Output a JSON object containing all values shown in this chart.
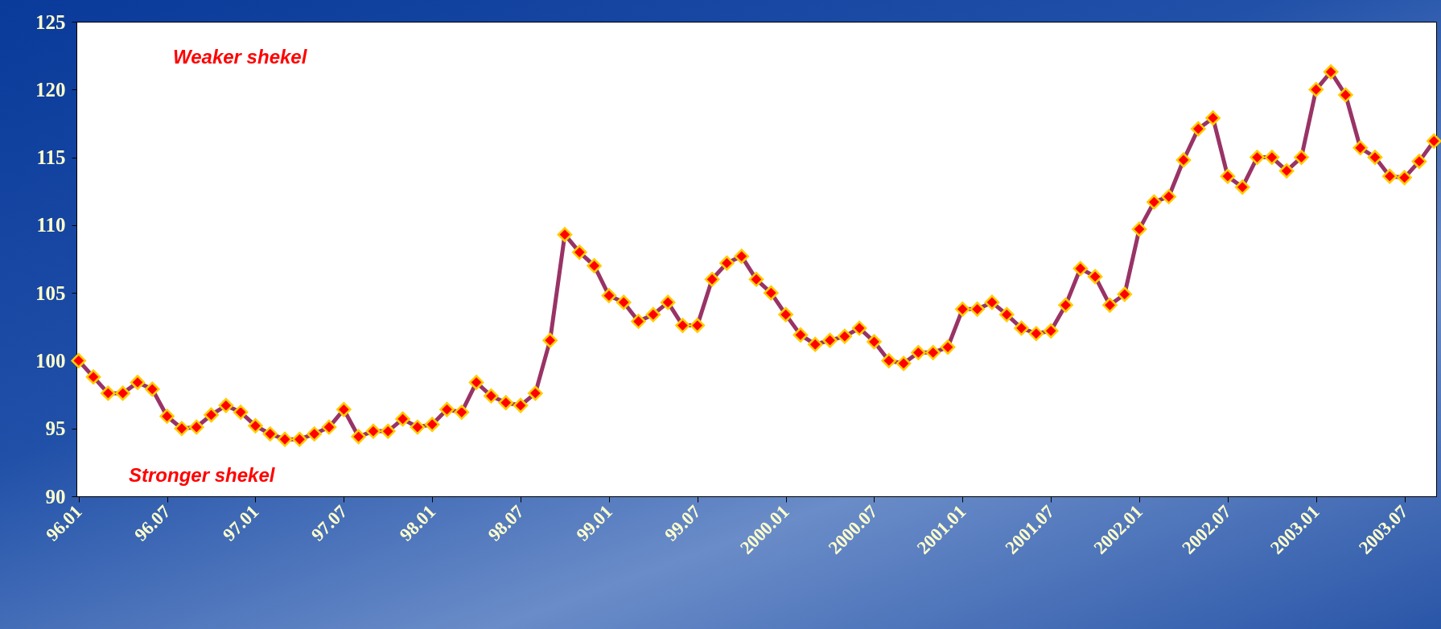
{
  "chart_data": {
    "type": "line",
    "categories": [
      "96.01",
      null,
      null,
      null,
      null,
      null,
      "96.07",
      null,
      null,
      null,
      null,
      null,
      "97.01",
      null,
      null,
      null,
      null,
      null,
      "97.07",
      null,
      null,
      null,
      null,
      null,
      "98.01",
      null,
      null,
      null,
      null,
      null,
      "98.07",
      null,
      null,
      null,
      null,
      null,
      "99.01",
      null,
      null,
      null,
      null,
      null,
      "99.07",
      null,
      null,
      null,
      null,
      null,
      "2000.01",
      null,
      null,
      null,
      null,
      null,
      "2000.07",
      null,
      null,
      null,
      null,
      null,
      "2001.01",
      null,
      null,
      null,
      null,
      null,
      "2001.07",
      null,
      null,
      null,
      null,
      null,
      "2002.01",
      null,
      null,
      null,
      null,
      null,
      "2002.07",
      null,
      null,
      null,
      null,
      null,
      "2003.01",
      null,
      null,
      null,
      null,
      null,
      "2003.07",
      null,
      null
    ],
    "series": [
      {
        "color": "#993366",
        "values": [
          100,
          98.8,
          97.6,
          97.6,
          98.4,
          97.9,
          95.9,
          95.0,
          95.1,
          96.0,
          96.7,
          96.2,
          95.2,
          94.6,
          94.2,
          94.2,
          94.6,
          95.1,
          96.4,
          94.4,
          94.8,
          94.8,
          95.7,
          95.1,
          95.3,
          96.4,
          96.2,
          98.4,
          97.4,
          96.9,
          96.7,
          97.6,
          101.5,
          109.3,
          108.0,
          107.0,
          104.8,
          104.3,
          102.9,
          103.4,
          104.3,
          102.6,
          102.6,
          106.0,
          107.2,
          107.7,
          106.0,
          105.0,
          103.4,
          101.9,
          101.2,
          101.5,
          101.8,
          102.4,
          101.4,
          100.0,
          99.8,
          100.6,
          100.6,
          101.0,
          103.8,
          103.8,
          104.3,
          103.4,
          102.4,
          102.0,
          102.2,
          104.1,
          106.8,
          106.2,
          104.1,
          104.9,
          109.7,
          111.7,
          112.1,
          114.8,
          117.1,
          117.9,
          113.6,
          112.8,
          115.0,
          115.0,
          114.0,
          115.0,
          120.0,
          121.3,
          119.6,
          115.7,
          115.0,
          113.6,
          113.5,
          114.7,
          116.2
        ]
      }
    ],
    "ylim": [
      90,
      125
    ],
    "yticks": [
      90,
      95,
      100,
      105,
      110,
      115,
      120,
      125
    ],
    "grid": false,
    "marker": "diamond",
    "line_style": "solid",
    "annotations": [
      "Weaker shekel",
      "Stronger shekel"
    ]
  }
}
